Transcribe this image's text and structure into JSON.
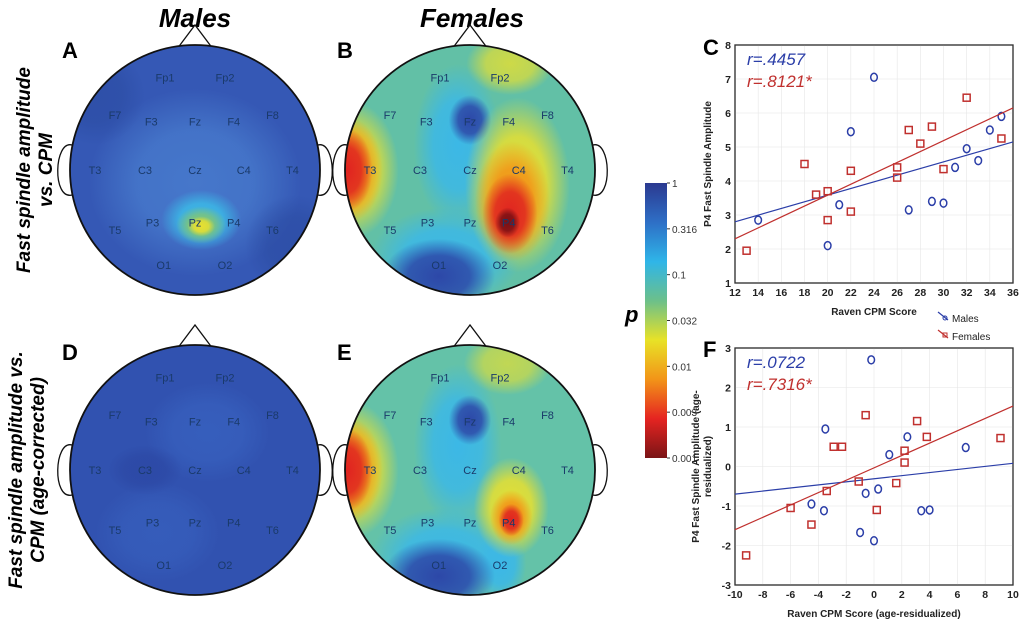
{
  "column_titles": {
    "males": "Males",
    "females": "Females"
  },
  "row_labels": {
    "row1": [
      "Fast spindle amplitude",
      "vs. CPM"
    ],
    "row2": [
      "Fast spindle amplitude vs.",
      "CPM (age-corrected)"
    ]
  },
  "panel_letters": {
    "A": "A",
    "B": "B",
    "C": "C",
    "D": "D",
    "E": "E",
    "F": "F"
  },
  "electrodes": [
    "Fp1",
    "Fp2",
    "F7",
    "F3",
    "Fz",
    "F4",
    "F8",
    "T3",
    "C3",
    "Cz",
    "C4",
    "T4",
    "T5",
    "P3",
    "Pz",
    "P4",
    "T6",
    "O1",
    "O2"
  ],
  "colorbar": {
    "label": "p",
    "ticks": [
      "1",
      "0.316",
      "0.1",
      "0.032",
      "0.01",
      "0.003",
      "0.001"
    ],
    "colors": [
      "#2b3990",
      "#2e6fc6",
      "#2fb5e8",
      "#6cc08a",
      "#e8e227",
      "#f29418",
      "#e52421",
      "#7a1416"
    ]
  },
  "legend": {
    "males": "Males",
    "females": "Females"
  },
  "colors": {
    "males": "#2b3ea8",
    "females": "#c0302e"
  },
  "chart_data": [
    {
      "panel": "C",
      "type": "scatter",
      "xlabel": "Raven CPM Score",
      "ylabel": "P4 Fast Spindle Amplitude",
      "xlim": [
        12,
        36
      ],
      "ylim": [
        1,
        8
      ],
      "xticks": [
        12,
        14,
        16,
        18,
        20,
        22,
        24,
        26,
        28,
        30,
        32,
        34,
        36
      ],
      "yticks": [
        1,
        2,
        3,
        4,
        5,
        6,
        7,
        8
      ],
      "grid": true,
      "annotations": [
        {
          "text": "r=.4457",
          "series": "Males"
        },
        {
          "text": "r=.8121*",
          "series": "Females"
        }
      ],
      "series": [
        {
          "name": "Males",
          "marker": "circle",
          "points": [
            [
              14,
              2.85
            ],
            [
              20,
              2.1
            ],
            [
              21,
              3.3
            ],
            [
              22,
              5.45
            ],
            [
              24,
              7.05
            ],
            [
              27,
              3.15
            ],
            [
              29,
              3.4
            ],
            [
              30,
              3.35
            ],
            [
              31,
              4.4
            ],
            [
              32,
              4.95
            ],
            [
              33,
              4.6
            ],
            [
              34,
              5.5
            ],
            [
              35,
              5.9
            ]
          ],
          "fit": [
            [
              12,
              2.8
            ],
            [
              36,
              5.15
            ]
          ]
        },
        {
          "name": "Females",
          "marker": "square",
          "points": [
            [
              13,
              1.95
            ],
            [
              18,
              4.5
            ],
            [
              19,
              3.6
            ],
            [
              20,
              3.7
            ],
            [
              20,
              2.85
            ],
            [
              22,
              4.3
            ],
            [
              22,
              3.1
            ],
            [
              26,
              4.4
            ],
            [
              26,
              4.1
            ],
            [
              27,
              5.5
            ],
            [
              28,
              5.1
            ],
            [
              29,
              5.6
            ],
            [
              30,
              4.35
            ],
            [
              32,
              6.45
            ],
            [
              35,
              5.25
            ]
          ],
          "fit": [
            [
              12,
              2.3
            ],
            [
              36,
              6.15
            ]
          ]
        }
      ]
    },
    {
      "panel": "F",
      "type": "scatter",
      "xlabel": "Raven CPM Score (age-residualized)",
      "ylabel": [
        "P4 Fast Spindle Amplitude (age-",
        "residualized)"
      ],
      "xlim": [
        -10,
        10
      ],
      "ylim": [
        -3,
        3
      ],
      "xticks": [
        -10,
        -8,
        -6,
        -4,
        -2,
        0,
        2,
        4,
        6,
        8,
        10
      ],
      "yticks": [
        -3,
        -2,
        -1,
        0,
        1,
        2,
        3
      ],
      "grid": true,
      "annotations": [
        {
          "text": "r=.0722",
          "series": "Males"
        },
        {
          "text": "r=.7316*",
          "series": "Females"
        }
      ],
      "series": [
        {
          "name": "Males",
          "marker": "circle",
          "points": [
            [
              -0.2,
              2.7
            ],
            [
              -3.5,
              0.95
            ],
            [
              2.4,
              0.75
            ],
            [
              1.1,
              0.3
            ],
            [
              6.6,
              0.48
            ],
            [
              0.3,
              -0.57
            ],
            [
              -0.6,
              -0.68
            ],
            [
              -4.5,
              -0.95
            ],
            [
              -3.6,
              -1.12
            ],
            [
              3.4,
              -1.12
            ],
            [
              4.0,
              -1.1
            ],
            [
              -1.0,
              -1.67
            ],
            [
              0,
              -1.88
            ]
          ],
          "fit": [
            [
              -10,
              -0.7
            ],
            [
              10,
              0.08
            ]
          ]
        },
        {
          "name": "Females",
          "marker": "square",
          "points": [
            [
              -9.2,
              -2.25
            ],
            [
              -6,
              -1.05
            ],
            [
              -4.5,
              -1.47
            ],
            [
              -3.4,
              -0.62
            ],
            [
              -2.9,
              0.5
            ],
            [
              -2.3,
              0.5
            ],
            [
              -0.6,
              1.3
            ],
            [
              -1.1,
              -0.38
            ],
            [
              0.2,
              -1.1
            ],
            [
              1.6,
              -0.42
            ],
            [
              2.2,
              0.4
            ],
            [
              2.2,
              0.1
            ],
            [
              3.1,
              1.15
            ],
            [
              3.8,
              0.75
            ],
            [
              9.1,
              0.72
            ]
          ],
          "fit": [
            [
              -10,
              -1.6
            ],
            [
              10,
              1.53
            ]
          ]
        }
      ]
    }
  ]
}
